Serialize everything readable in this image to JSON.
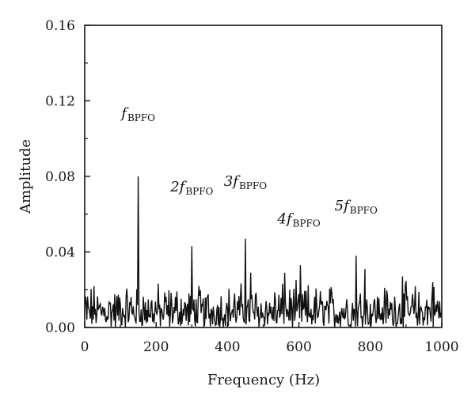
{
  "chart_data": {
    "type": "line",
    "title": "",
    "xlabel": "Frequency (Hz)",
    "ylabel": "Amplitude",
    "xlim": [
      0,
      1000
    ],
    "ylim": [
      0,
      0.16
    ],
    "x_ticks": [
      0,
      200,
      400,
      600,
      800,
      1000
    ],
    "x_tick_labels": [
      "0",
      "200",
      "400",
      "600",
      "800",
      "1000"
    ],
    "y_ticks": [
      0,
      0.04,
      0.08,
      0.12,
      0.16
    ],
    "y_tick_labels": [
      "0.00",
      "0.04",
      "0.08",
      "0.12",
      "0.16"
    ],
    "grid": false,
    "line_color": "#111111",
    "noise_floor": {
      "min": 0.0,
      "max": 0.026,
      "step_hz": 2
    },
    "series": [
      {
        "peaks": [
          {
            "x": 150,
            "y": 0.08
          },
          {
            "x": 300,
            "y": 0.043
          },
          {
            "x": 450,
            "y": 0.047
          },
          {
            "x": 465,
            "y": 0.029
          },
          {
            "x": 560,
            "y": 0.029
          },
          {
            "x": 604,
            "y": 0.033
          },
          {
            "x": 760,
            "y": 0.038
          },
          {
            "x": 785,
            "y": 0.031
          },
          {
            "x": 890,
            "y": 0.027
          },
          {
            "x": 975,
            "y": 0.024
          }
        ]
      }
    ],
    "annotations": [
      {
        "prefix": "",
        "main": "f",
        "sub": "BPFO",
        "x": 150,
        "y": 0.111
      },
      {
        "prefix": "2",
        "main": "f",
        "sub": "BPFO",
        "x": 300,
        "y": 0.072
      },
      {
        "prefix": "3",
        "main": "f",
        "sub": "BPFO",
        "x": 450,
        "y": 0.075
      },
      {
        "prefix": "4",
        "main": "f",
        "sub": "BPFO",
        "x": 600,
        "y": 0.055
      },
      {
        "prefix": "5",
        "main": "f",
        "sub": "BPFO",
        "x": 760,
        "y": 0.062
      }
    ]
  }
}
